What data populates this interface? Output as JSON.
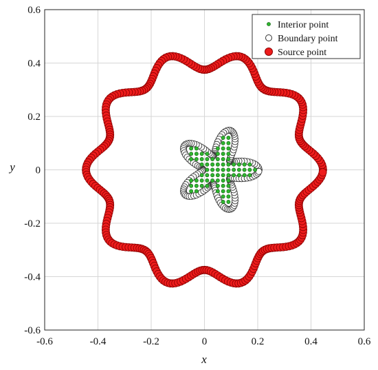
{
  "chart_data": {
    "type": "scatter",
    "title": "",
    "xlabel": "x",
    "ylabel": "y",
    "xlim": [
      -0.6,
      0.6
    ],
    "ylim": [
      -0.6,
      0.6
    ],
    "xticks": [
      -0.6,
      -0.4,
      -0.2,
      0,
      0.2,
      0.4,
      0.6
    ],
    "yticks": [
      -0.6,
      -0.4,
      -0.2,
      0,
      0.2,
      0.4,
      0.6
    ],
    "xtick_labels": [
      "-0.6",
      "-0.4",
      "-0.2",
      "0",
      "0.2",
      "0.4",
      "0.6"
    ],
    "ytick_labels": [
      "-0.6",
      "-0.4",
      "-0.2",
      "0",
      "0.2",
      "0.4",
      "0.6"
    ],
    "grid": true,
    "legend_position": "top-right",
    "series": [
      {
        "name": "Interior point",
        "color": "#2fb52f",
        "marker": "small-dot",
        "description_of_region": "grid of points filling the five-lobed flower shape centered near (0.05, 0)",
        "flower": {
          "center": [
            0.05,
            0.0
          ],
          "base_radius": 0.105,
          "lobe_amplitude": 0.05,
          "lobes": 5,
          "phase_deg": 0
        },
        "grid_spacing": 0.02
      },
      {
        "name": "Boundary point",
        "color": "#ffffff",
        "edge_color": "#333333",
        "marker": "open-circle",
        "flower": {
          "center": [
            0.05,
            0.0
          ],
          "base_radius": 0.105,
          "lobe_amplitude": 0.05,
          "lobes": 5,
          "phase_deg": 0
        },
        "count": 160
      },
      {
        "name": "Source point",
        "color": "#ee1c1c",
        "edge_color": "#8b0000",
        "marker": "filled-circle",
        "curve": {
          "center": [
            0.0,
            0.0
          ],
          "base_radius": 0.41,
          "wave_amplitude": 0.035,
          "waves": 10,
          "phase_deg": 0
        },
        "count": 300
      }
    ]
  }
}
